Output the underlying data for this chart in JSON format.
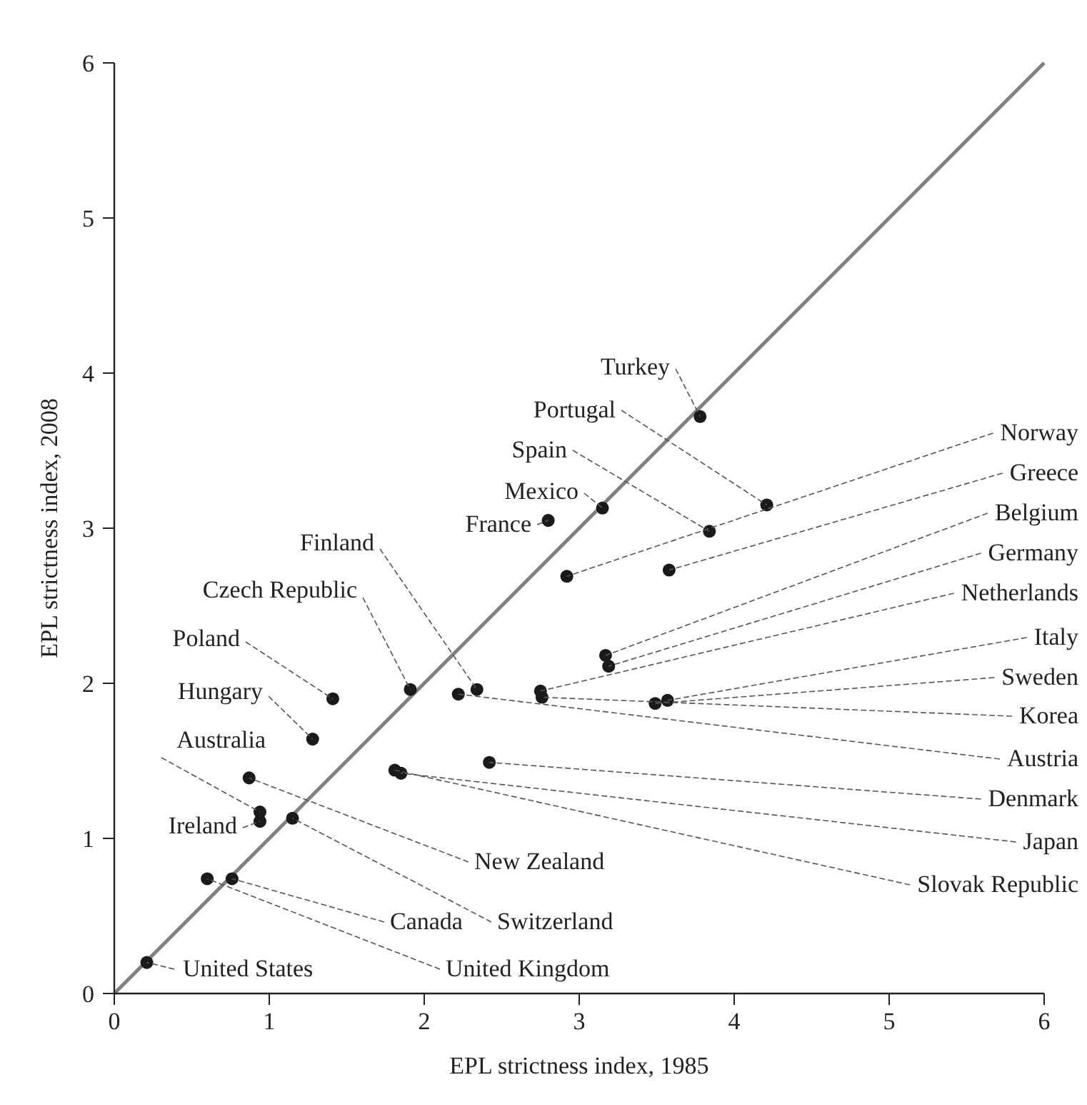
{
  "chart_data": {
    "type": "scatter",
    "xlabel": "EPL strictness index, 1985",
    "ylabel": "EPL strictness index, 2008",
    "xlim": [
      0,
      6
    ],
    "ylim": [
      0,
      6
    ],
    "xticks": [
      0,
      1,
      2,
      3,
      4,
      5,
      6
    ],
    "yticks": [
      0,
      1,
      2,
      3,
      4,
      5,
      6
    ],
    "series": [
      {
        "type": "line",
        "color": "#808080",
        "x": [
          0,
          6
        ],
        "values": [
          0,
          6
        ]
      },
      {
        "marker": "circle",
        "color": "#1a1a1a",
        "x": [
          3.78,
          4.21,
          3.84,
          3.15,
          2.8,
          2.34,
          1.91,
          1.41,
          1.28,
          0.94,
          0.94,
          0.21,
          2.92,
          3.58,
          3.17,
          3.19,
          2.75,
          3.57,
          3.49,
          2.76,
          2.22,
          2.42,
          1.85,
          1.81,
          0.87,
          1.15,
          0.76,
          0.6
        ],
        "values": [
          3.72,
          3.15,
          2.98,
          3.13,
          3.05,
          1.96,
          1.96,
          1.9,
          1.64,
          1.17,
          1.11,
          0.2,
          2.69,
          2.73,
          2.18,
          2.11,
          1.95,
          1.89,
          1.87,
          1.91,
          1.93,
          1.49,
          1.42,
          1.44,
          1.39,
          1.13,
          0.74,
          0.74
        ]
      }
    ],
    "annotations": [
      {
        "text": "Turkey",
        "x": 3.78,
        "y": 3.72
      },
      {
        "text": "Portugal",
        "x": 4.21,
        "y": 3.15
      },
      {
        "text": "Spain",
        "x": 3.84,
        "y": 2.98
      },
      {
        "text": "Mexico",
        "x": 3.15,
        "y": 3.13
      },
      {
        "text": "France",
        "x": 2.8,
        "y": 3.05
      },
      {
        "text": "Finland",
        "x": 2.34,
        "y": 1.96
      },
      {
        "text": "Czech Republic",
        "x": 1.91,
        "y": 1.96
      },
      {
        "text": "Poland",
        "x": 1.41,
        "y": 1.9
      },
      {
        "text": "Hungary",
        "x": 1.28,
        "y": 1.64
      },
      {
        "text": "Australia",
        "x": 0.94,
        "y": 1.17
      },
      {
        "text": "Ireland",
        "x": 0.94,
        "y": 1.11
      },
      {
        "text": "United States",
        "x": 0.21,
        "y": 0.2
      },
      {
        "text": "Norway",
        "x": 2.92,
        "y": 2.69
      },
      {
        "text": "Greece",
        "x": 3.58,
        "y": 2.73
      },
      {
        "text": "Belgium",
        "x": 3.17,
        "y": 2.18
      },
      {
        "text": "Germany",
        "x": 3.19,
        "y": 2.11
      },
      {
        "text": "Netherlands",
        "x": 2.75,
        "y": 1.95
      },
      {
        "text": "Italy",
        "x": 3.57,
        "y": 1.89
      },
      {
        "text": "Sweden",
        "x": 3.49,
        "y": 1.87
      },
      {
        "text": "Korea",
        "x": 2.76,
        "y": 1.91
      },
      {
        "text": "Austria",
        "x": 2.22,
        "y": 1.93
      },
      {
        "text": "Denmark",
        "x": 2.42,
        "y": 1.49
      },
      {
        "text": "Japan",
        "x": 1.85,
        "y": 1.42
      },
      {
        "text": "Slovak Republic",
        "x": 1.81,
        "y": 1.44
      },
      {
        "text": "New Zealand",
        "x": 0.87,
        "y": 1.39
      },
      {
        "text": "Switzerland",
        "x": 1.15,
        "y": 1.13
      },
      {
        "text": "Canada",
        "x": 0.76,
        "y": 0.74
      },
      {
        "text": "United Kingdom",
        "x": 0.6,
        "y": 0.74
      }
    ]
  }
}
